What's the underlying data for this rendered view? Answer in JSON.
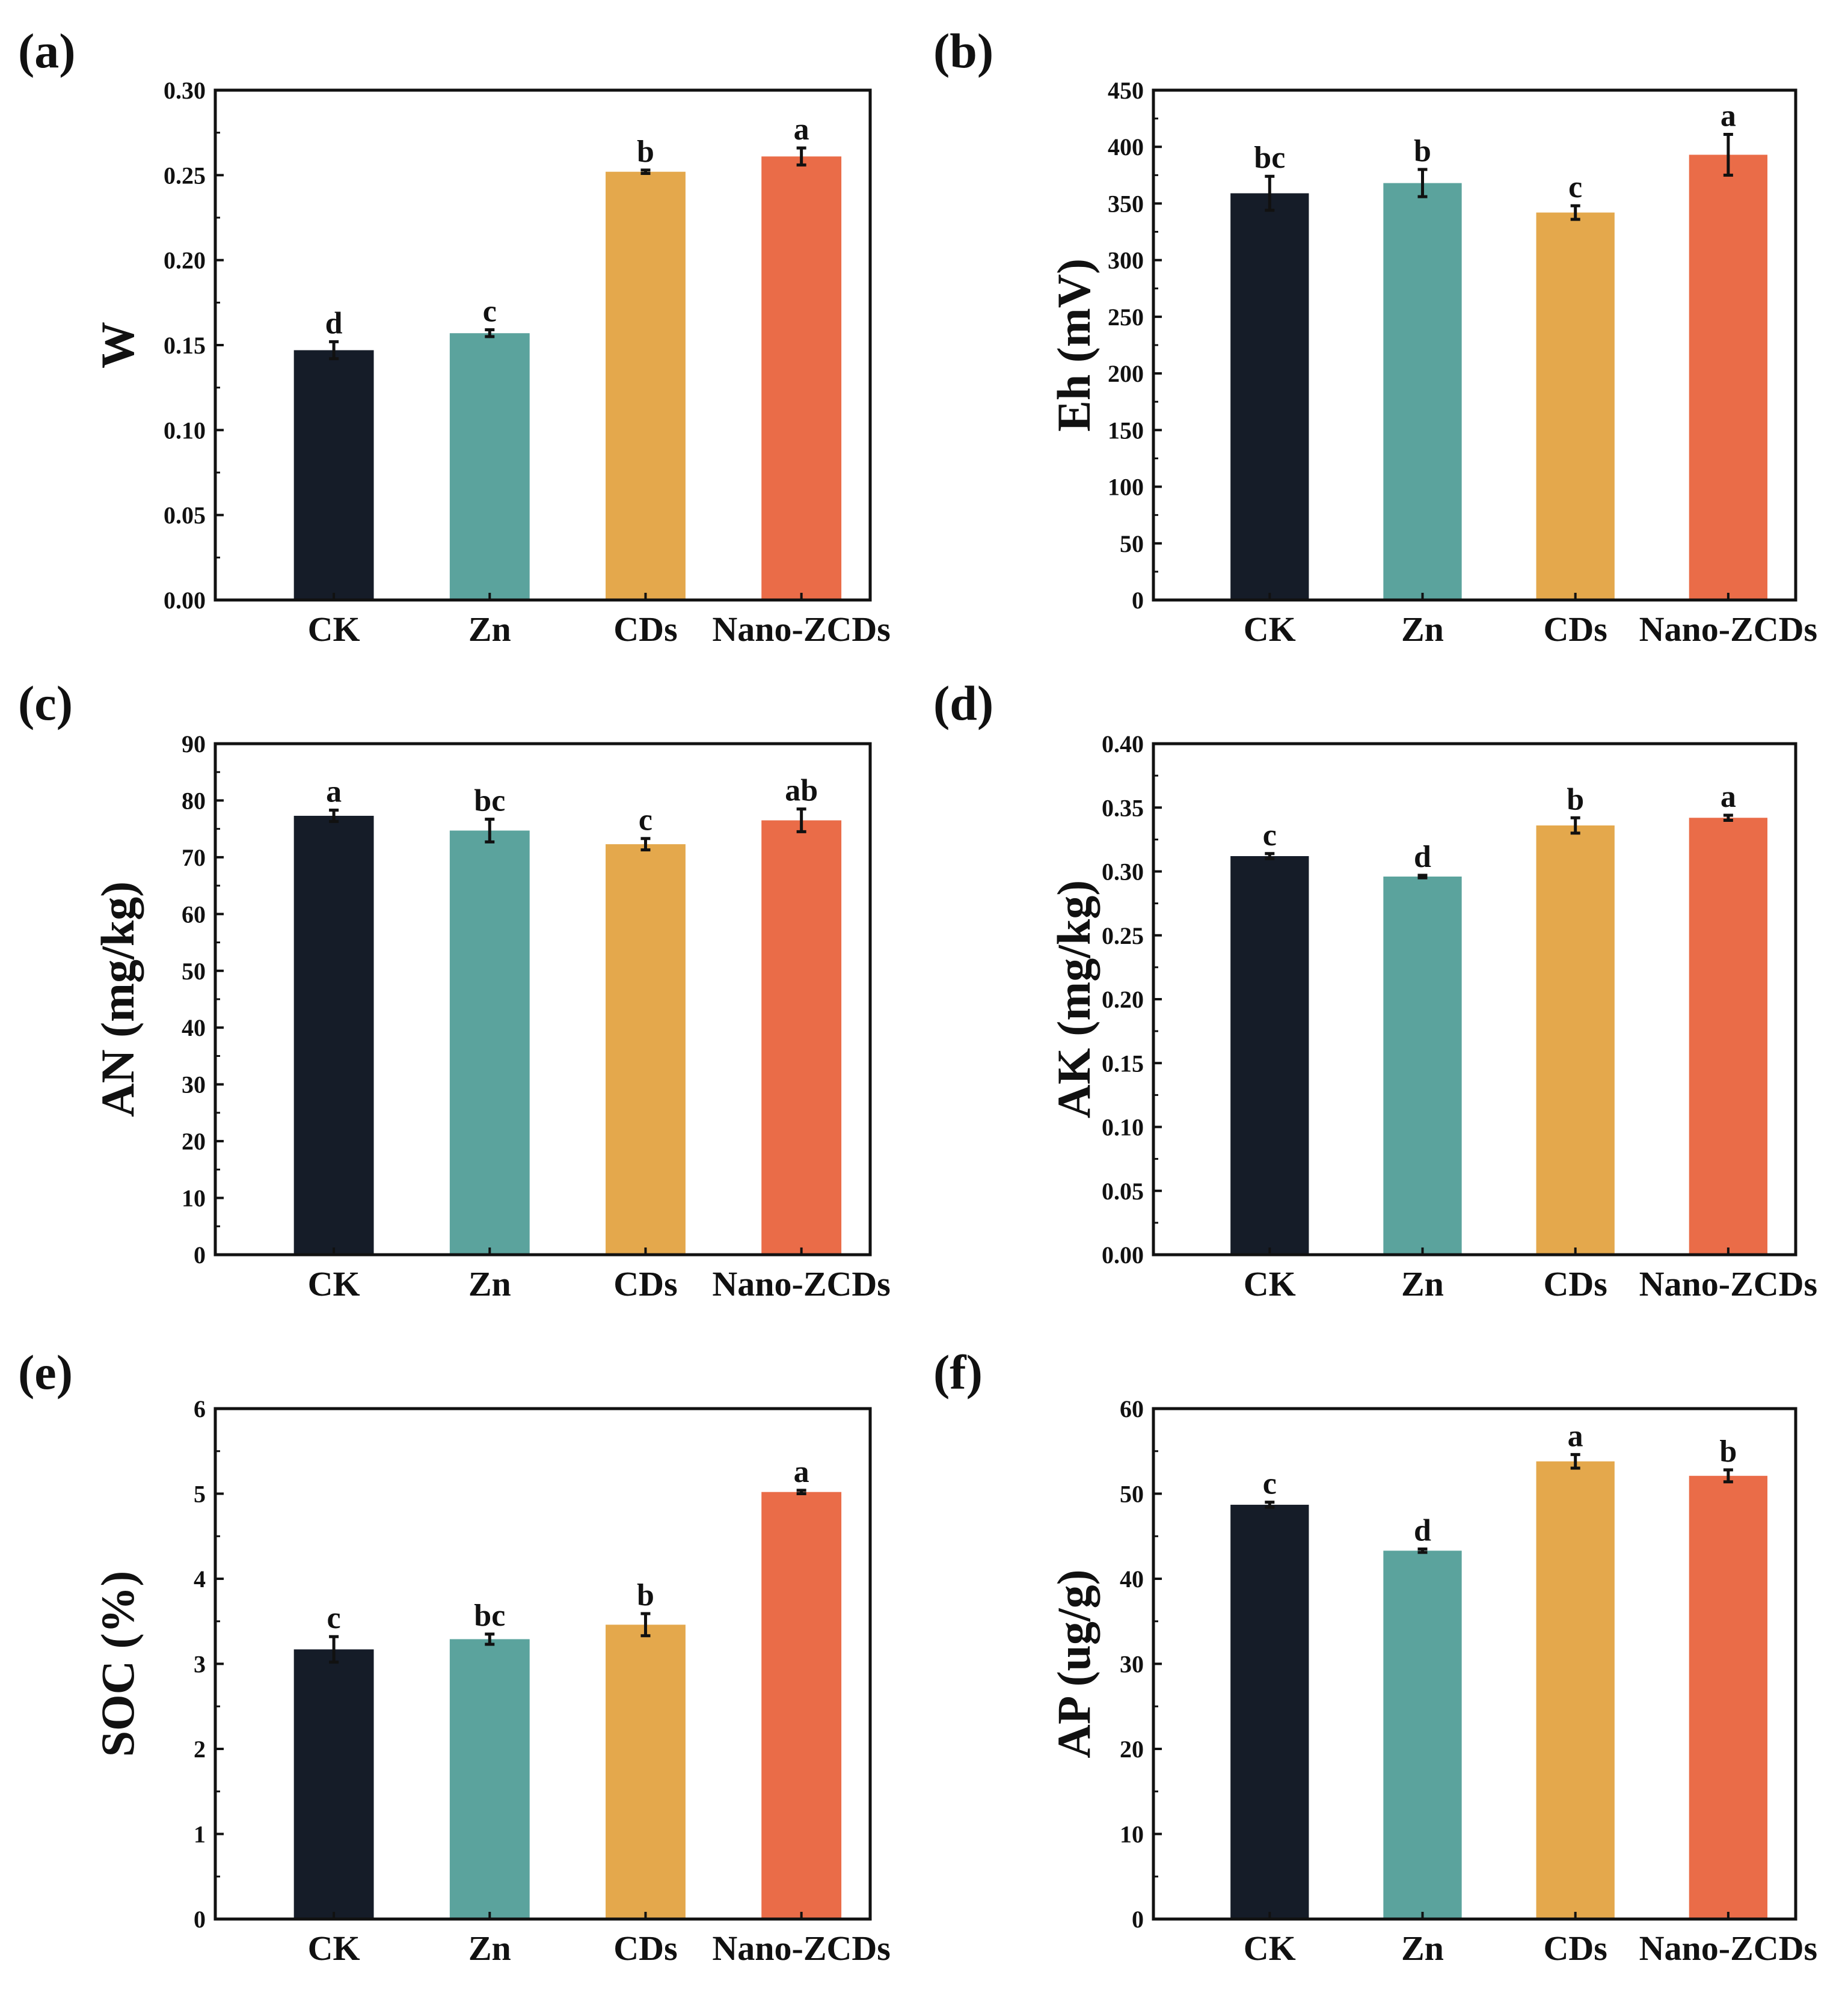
{
  "colors": {
    "CK": "#151c28",
    "Zn": "#5ba39d",
    "CDs": "#e4a84c",
    "Nano-ZCDs": "#ea6c48",
    "axis": "#111111"
  },
  "chart_data": [
    {
      "type": "bar",
      "panel": "(a)",
      "ylabel": "W",
      "ylim": [
        0,
        0.3
      ],
      "yticks": [
        "0.00",
        "0.05",
        "0.10",
        "0.15",
        "0.20",
        "0.25",
        "0.30"
      ],
      "categories": [
        "CK",
        "Zn",
        "CDs",
        "Nano-ZCDs"
      ],
      "values": [
        0.147,
        0.157,
        0.252,
        0.261
      ],
      "errors": [
        0.005,
        0.002,
        0.001,
        0.005
      ],
      "significance": [
        "d",
        "c",
        "b",
        "a"
      ]
    },
    {
      "type": "bar",
      "panel": "(b)",
      "ylabel": "Eh (mV)",
      "ylim": [
        0,
        450
      ],
      "yticks": [
        "0",
        "50",
        "100",
        "150",
        "200",
        "250",
        "300",
        "350",
        "400",
        "450"
      ],
      "categories": [
        "CK",
        "Zn",
        "CDs",
        "Nano-ZCDs"
      ],
      "values": [
        359,
        368,
        342,
        393
      ],
      "errors": [
        15,
        12,
        6,
        18
      ],
      "significance": [
        "bc",
        "b",
        "c",
        "a"
      ]
    },
    {
      "type": "bar",
      "panel": "(c)",
      "ylabel": "AN (mg/kg)",
      "ylim": [
        0,
        90
      ],
      "yticks": [
        "0",
        "10",
        "20",
        "30",
        "40",
        "50",
        "60",
        "70",
        "80",
        "90"
      ],
      "categories": [
        "CK",
        "Zn",
        "CDs",
        "Nano-ZCDs"
      ],
      "values": [
        77.3,
        74.7,
        72.3,
        76.5
      ],
      "errors": [
        1.0,
        2.0,
        1.0,
        2.0
      ],
      "significance": [
        "a",
        "bc",
        "c",
        "ab"
      ]
    },
    {
      "type": "bar",
      "panel": "(d)",
      "ylabel": "AK (mg/kg)",
      "ylim": [
        0,
        0.4
      ],
      "yticks": [
        "0.00",
        "0.05",
        "0.10",
        "0.15",
        "0.20",
        "0.25",
        "0.30",
        "0.35",
        "0.40"
      ],
      "categories": [
        "CK",
        "Zn",
        "CDs",
        "Nano-ZCDs"
      ],
      "values": [
        0.312,
        0.296,
        0.336,
        0.342
      ],
      "errors": [
        0.002,
        0.001,
        0.006,
        0.002
      ],
      "significance": [
        "c",
        "d",
        "b",
        "a"
      ]
    },
    {
      "type": "bar",
      "panel": "(e)",
      "ylabel": "SOC (%)",
      "ylim": [
        0,
        6
      ],
      "yticks": [
        "0",
        "1",
        "2",
        "3",
        "4",
        "5",
        "6"
      ],
      "categories": [
        "CK",
        "Zn",
        "CDs",
        "Nano-ZCDs"
      ],
      "values": [
        3.17,
        3.29,
        3.46,
        5.02
      ],
      "errors": [
        0.15,
        0.06,
        0.13,
        0.02
      ],
      "significance": [
        "c",
        "bc",
        "b",
        "a"
      ]
    },
    {
      "type": "bar",
      "panel": "(f)",
      "ylabel": "AP (ug/g)",
      "ylim": [
        0,
        60
      ],
      "yticks": [
        "0",
        "10",
        "20",
        "30",
        "40",
        "50",
        "60"
      ],
      "categories": [
        "CK",
        "Zn",
        "CDs",
        "Nano-ZCDs"
      ],
      "values": [
        48.7,
        43.3,
        53.8,
        52.1
      ],
      "errors": [
        0.3,
        0.2,
        0.8,
        0.7
      ],
      "significance": [
        "c",
        "d",
        "a",
        "b"
      ]
    }
  ]
}
